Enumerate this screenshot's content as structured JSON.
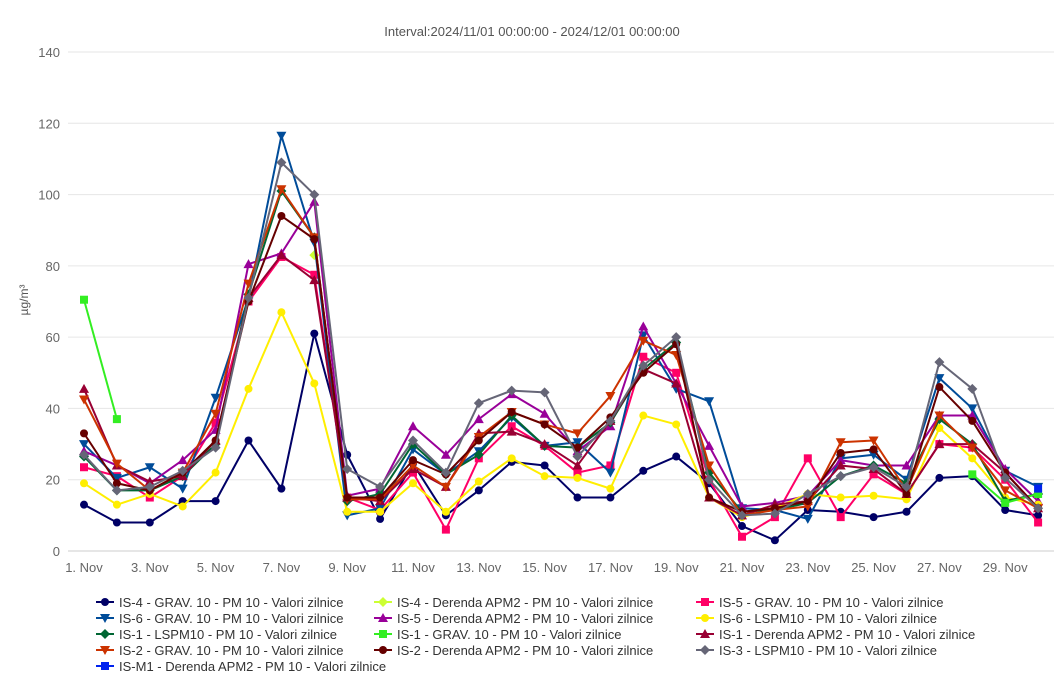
{
  "chart_data": {
    "type": "line",
    "title": "Interval:2024/11/01 00:00:00 - 2024/12/01 00:00:00",
    "ylabel": "µg/m³",
    "ylim": [
      0,
      140
    ],
    "yticks": [
      0,
      20,
      40,
      60,
      80,
      100,
      120,
      140
    ],
    "x": [
      1,
      2,
      3,
      4,
      5,
      6,
      7,
      8,
      9,
      10,
      11,
      12,
      13,
      14,
      15,
      16,
      17,
      18,
      19,
      20,
      21,
      22,
      23,
      24,
      25,
      26,
      27,
      28,
      29,
      30
    ],
    "xtick_labels": [
      "1. Nov",
      "3. Nov",
      "5. Nov",
      "7. Nov",
      "9. Nov",
      "11. Nov",
      "13. Nov",
      "15. Nov",
      "17. Nov",
      "19. Nov",
      "21. Nov",
      "23. Nov",
      "25. Nov",
      "27. Nov",
      "29. Nov"
    ],
    "xtick_positions": [
      1,
      3,
      5,
      7,
      9,
      11,
      13,
      15,
      17,
      19,
      21,
      23,
      25,
      27,
      29
    ],
    "grid": true,
    "legend_position": "bottom",
    "series": [
      {
        "name": "IS-4 - GRAV. 10 - PM 10 - Valori zilnice",
        "color": "#000066",
        "marker": "circle",
        "values": [
          13,
          8,
          8,
          14,
          14,
          31,
          17.5,
          61,
          27,
          9,
          24.5,
          10,
          17,
          25,
          24,
          15,
          15,
          22.5,
          26.5,
          19,
          7,
          3,
          11.5,
          11,
          9.5,
          11,
          20.5,
          21,
          11.5,
          10
        ]
      },
      {
        "name": "IS-4 - Derenda APM2 - PM 10 - Valori zilnice",
        "color": "#ccff33",
        "marker": "diamond",
        "values": [
          null,
          null,
          null,
          null,
          null,
          null,
          null,
          83,
          null,
          null,
          null,
          null,
          null,
          null,
          null,
          null,
          null,
          null,
          null,
          null,
          null,
          null,
          null,
          null,
          null,
          null,
          null,
          null,
          null,
          null
        ]
      },
      {
        "name": "IS-5 - GRAV. 10 - PM 10 - Valori zilnice",
        "color": "#ff0066",
        "marker": "square",
        "values": [
          23.5,
          21,
          15,
          21,
          36,
          70,
          82.5,
          77.5,
          15,
          11.5,
          22,
          6,
          26,
          35,
          29.5,
          22,
          24,
          54.5,
          50,
          20,
          4,
          9.5,
          26,
          9.5,
          21.5,
          16,
          30,
          29,
          20,
          8
        ]
      },
      {
        "name": "IS-6 - GRAV. 10 - PM 10 - Valori zilnice",
        "color": "#004c99",
        "marker": "triangle-down",
        "values": [
          30,
          20.5,
          23.5,
          17.5,
          43,
          71,
          116.5,
          86.5,
          10,
          12,
          28.5,
          21.5,
          28,
          37.5,
          29.5,
          30.5,
          22,
          60.5,
          45.5,
          42,
          12,
          11.5,
          9,
          26,
          27,
          20,
          48.5,
          40,
          22.5,
          18
        ]
      },
      {
        "name": "IS-5 - Derenda APM2 - PM 10 - Valori zilnice",
        "color": "#990099",
        "marker": "triangle",
        "values": [
          28,
          24,
          19,
          25.5,
          34,
          80.5,
          83.5,
          98,
          15.5,
          17.5,
          35,
          27,
          37,
          44,
          38.5,
          28,
          35,
          63,
          47,
          29.5,
          12.5,
          13.5,
          15.5,
          25.5,
          24,
          24,
          38,
          38,
          23,
          14
        ]
      },
      {
        "name": "IS-6 - LSPM10 - PM 10 - Valori zilnice",
        "color": "#ffee00",
        "marker": "circle",
        "values": [
          19,
          13,
          16,
          12.5,
          22,
          45.5,
          67,
          47,
          11,
          11,
          19,
          11,
          19.5,
          26,
          21,
          20.5,
          17.5,
          38,
          35.5,
          15,
          9.5,
          12,
          16,
          15,
          15.5,
          14.5,
          34.5,
          26,
          15,
          13
        ]
      },
      {
        "name": "IS-1 - LSPM10 - PM 10 - Valori zilnice",
        "color": "#006633",
        "marker": "diamond",
        "values": [
          26.5,
          17,
          17,
          21,
          30,
          72,
          101,
          88,
          14,
          16,
          30,
          21.5,
          27,
          38,
          29.5,
          29,
          36,
          51,
          58.5,
          22,
          11,
          11.5,
          13.5,
          21,
          24,
          19,
          37,
          30,
          14,
          16
        ]
      },
      {
        "name": "IS-1 - GRAV. 10 - PM 10 - Valori zilnice",
        "color": "#33ee22",
        "marker": "square",
        "values": [
          70.5,
          37,
          null,
          null,
          null,
          null,
          null,
          null,
          null,
          null,
          null,
          null,
          null,
          null,
          null,
          null,
          null,
          null,
          null,
          null,
          null,
          null,
          null,
          null,
          null,
          null,
          null,
          21.5,
          13.5,
          16
        ]
      },
      {
        "name": "IS-1 - Derenda APM2 - PM 10 - Valori zilnice",
        "color": "#990033",
        "marker": "triangle",
        "values": [
          45.5,
          24,
          19.5,
          21,
          31,
          71,
          83,
          76,
          15,
          14,
          23,
          18,
          33,
          33.5,
          30,
          24,
          36.5,
          51,
          47,
          15,
          10,
          13,
          14,
          24,
          23,
          16,
          30,
          30,
          22,
          12
        ]
      },
      {
        "name": "IS-2 - GRAV. 10 - PM 10 - Valori zilnice",
        "color": "#cc3300",
        "marker": "triangle-down",
        "values": [
          42.5,
          24.5,
          17,
          22,
          38.5,
          75,
          101.5,
          88,
          14.5,
          14.5,
          24,
          18,
          32,
          39,
          35.5,
          33,
          43.5,
          59,
          55,
          24,
          10,
          11.5,
          12.5,
          30.5,
          31,
          17,
          38,
          29,
          17,
          12
        ]
      },
      {
        "name": "IS-2 - Derenda APM2 - PM 10 - Valori zilnice",
        "color": "#660000",
        "marker": "circle",
        "values": [
          33,
          19,
          17,
          22,
          31,
          70,
          94,
          87.5,
          15,
          15,
          25.5,
          21.5,
          31,
          39,
          35.5,
          29,
          37.5,
          50,
          58,
          15,
          11,
          12,
          14,
          27.5,
          28.5,
          16,
          46,
          36.5,
          22,
          12
        ]
      },
      {
        "name": "IS-3 - LSPM10 - PM 10 - Valori zilnice",
        "color": "#666677",
        "marker": "diamond",
        "values": [
          27,
          17,
          18,
          22.5,
          29,
          71,
          109,
          100,
          23,
          18,
          31,
          22,
          41.5,
          45,
          44.5,
          26.5,
          36.5,
          52,
          60,
          20,
          10,
          10.5,
          16,
          21,
          23.5,
          18,
          53,
          45.5,
          20.5,
          12
        ]
      },
      {
        "name": "IS-M1 - Derenda APM2 - PM 10 - Valori zilnice",
        "color": "#0022ee",
        "marker": "square",
        "values": [
          null,
          null,
          null,
          null,
          null,
          null,
          null,
          null,
          null,
          null,
          null,
          null,
          null,
          null,
          null,
          null,
          null,
          null,
          null,
          null,
          null,
          null,
          null,
          null,
          null,
          null,
          null,
          null,
          null,
          17.5
        ]
      }
    ]
  }
}
